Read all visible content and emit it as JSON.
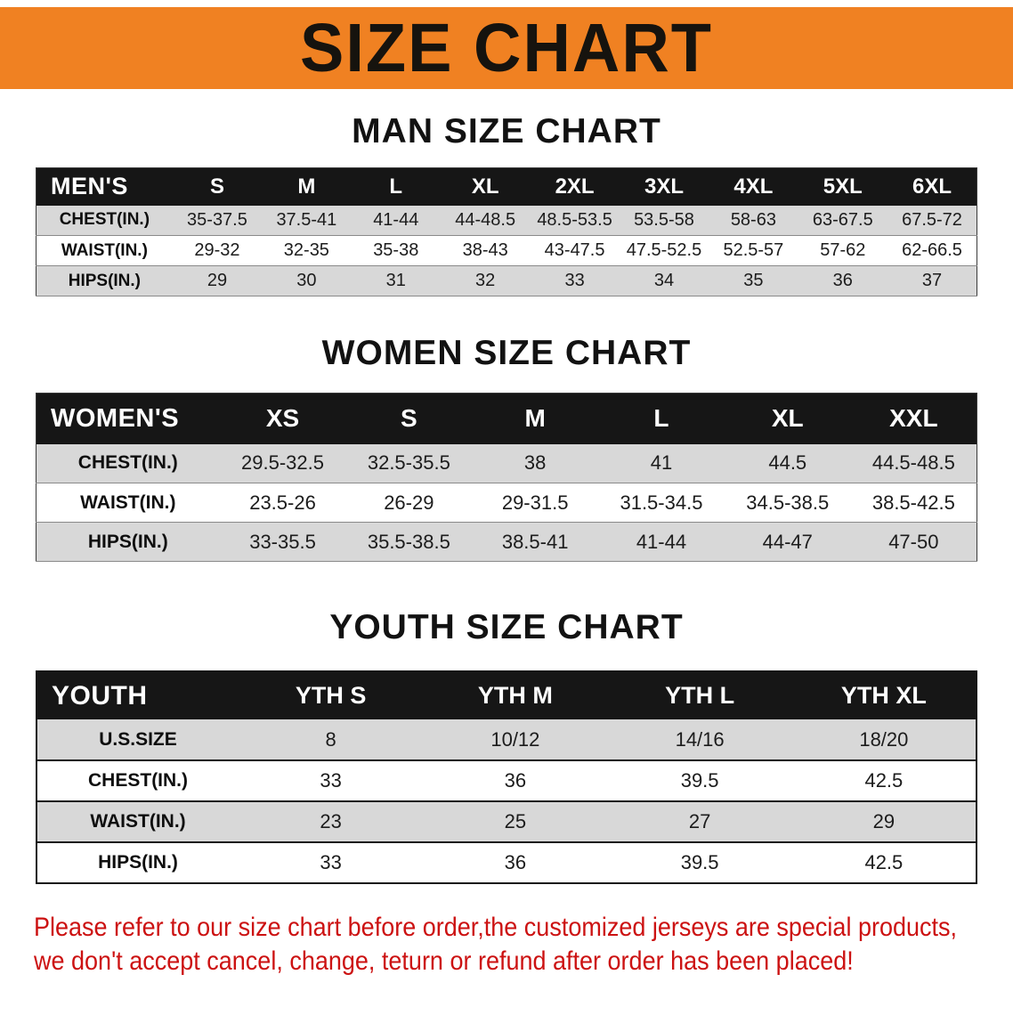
{
  "banner": {
    "title": "SIZE CHART",
    "bg_color": "#f08122",
    "text_color": "#16130e"
  },
  "sections": [
    {
      "id": "men",
      "heading": "MAN SIZE CHART",
      "table": {
        "header": [
          "MEN'S",
          "S",
          "M",
          "L",
          "XL",
          "2XL",
          "3XL",
          "4XL",
          "5XL",
          "6XL"
        ],
        "rows": [
          [
            "CHEST(IN.)",
            "35-37.5",
            "37.5-41",
            "41-44",
            "44-48.5",
            "48.5-53.5",
            "53.5-58",
            "58-63",
            "63-67.5",
            "67.5-72"
          ],
          [
            "WAIST(IN.)",
            "29-32",
            "32-35",
            "35-38",
            "38-43",
            "43-47.5",
            "47.5-52.5",
            "52.5-57",
            "57-62",
            "62-66.5"
          ],
          [
            "HIPS(IN.)",
            "29",
            "30",
            "31",
            "32",
            "33",
            "34",
            "35",
            "36",
            "37"
          ]
        ]
      }
    },
    {
      "id": "women",
      "heading": "WOMEN SIZE CHART",
      "table": {
        "header": [
          "WOMEN'S",
          "XS",
          "S",
          "M",
          "L",
          "XL",
          "XXL"
        ],
        "rows": [
          [
            "CHEST(IN.)",
            "29.5-32.5",
            "32.5-35.5",
            "38",
            "41",
            "44.5",
            "44.5-48.5"
          ],
          [
            "WAIST(IN.)",
            "23.5-26",
            "26-29",
            "29-31.5",
            "31.5-34.5",
            "34.5-38.5",
            "38.5-42.5"
          ],
          [
            "HIPS(IN.)",
            "33-35.5",
            "35.5-38.5",
            "38.5-41",
            "41-44",
            "44-47",
            "47-50"
          ]
        ]
      }
    },
    {
      "id": "youth",
      "heading": "YOUTH SIZE CHART",
      "table": {
        "header": [
          "YOUTH",
          "YTH S",
          "YTH M",
          "YTH L",
          "YTH XL"
        ],
        "rows": [
          [
            "U.S.SIZE",
            "8",
            "10/12",
            "14/16",
            "18/20"
          ],
          [
            "CHEST(IN.)",
            "33",
            "36",
            "39.5",
            "42.5"
          ],
          [
            "WAIST(IN.)",
            "23",
            "25",
            "27",
            "29"
          ],
          [
            "HIPS(IN.)",
            "33",
            "36",
            "39.5",
            "42.5"
          ]
        ]
      }
    }
  ],
  "footer": {
    "line1": "Please refer to our size chart before order,the customized jerseys are special products,",
    "line2": "we don't accept cancel, change, teturn or refund after order has been placed!",
    "text_color": "#cc1212"
  }
}
